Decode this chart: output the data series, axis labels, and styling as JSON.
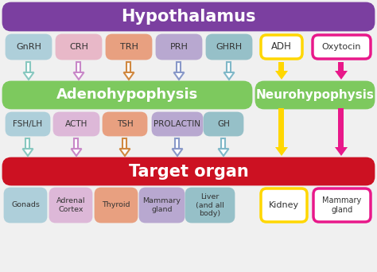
{
  "title": "Hypothalamus",
  "title_bg": "#7B3FA0",
  "adenohypo_label": "Adenohypophysis",
  "neurohypo_label": "Neurohypophysis",
  "gland_bg": "#7DC95E",
  "target_label": "Target organ",
  "target_bg": "#CC1122",
  "hypothalamus_hormones": [
    "GnRH",
    "CRH",
    "TRH",
    "PRH",
    "GHRH"
  ],
  "hypo_hormone_colors": [
    "#AECFDA",
    "#E8B8C8",
    "#E8A080",
    "#B8A8D0",
    "#96C0C8"
  ],
  "adh_label": "ADH",
  "adh_border": "#FFD700",
  "oxytocin_label": "Oxytocin",
  "oxytocin_border": "#E8188A",
  "adeno_hormones": [
    "FSH/LH",
    "ACTH",
    "TSH",
    "PROLACTIN",
    "GH"
  ],
  "adeno_hormone_colors": [
    "#AECFDA",
    "#DDB8D8",
    "#E8A080",
    "#B8A8D0",
    "#96C0C8"
  ],
  "target_organs": [
    "Gonads",
    "Adrenal\nCortex",
    "Thyroid",
    "Mammary\ngland",
    "Liver\n(and all\nbody)"
  ],
  "target_organ_colors": [
    "#AECFDA",
    "#DDB8D8",
    "#E8A080",
    "#B8A8D0",
    "#96C0C8"
  ],
  "kidney_label": "Kidney",
  "kidney_border": "#FFD700",
  "mammary_label": "Mammary\ngland",
  "mammary_border": "#E8188A",
  "arrow_colors": [
    "#88C8C0",
    "#C888C8",
    "#D08840",
    "#8898C8",
    "#80B8C8"
  ],
  "adh_arrow_color": "#FFD700",
  "oxytocin_arrow_color": "#E8188A",
  "bg_color": "#F0F0F0"
}
